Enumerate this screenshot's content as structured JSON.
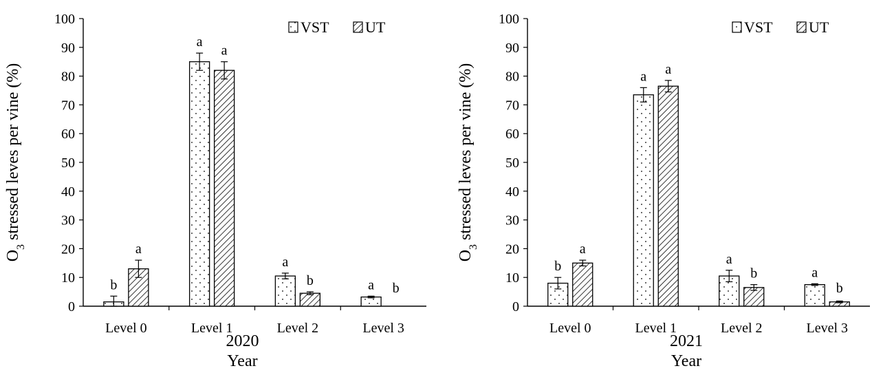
{
  "colors": {
    "ink": "#000000",
    "bg": "#ffffff"
  },
  "chart_data": [
    {
      "type": "bar",
      "subtitle": "2020",
      "xlabel": "Year",
      "ylabel_prefix": "O",
      "ylabel_sub": "3",
      "ylabel_rest": " stressed leves per vine (%)",
      "ylim": [
        0,
        100
      ],
      "yticks": [
        "0",
        "10",
        "20",
        "30",
        "40",
        "50",
        "60",
        "70",
        "80",
        "90",
        "100"
      ],
      "categories": [
        "Level 0",
        "Level 1",
        "Level 2",
        "Level 3"
      ],
      "legend_position": "top-right",
      "series": [
        {
          "name": "VST",
          "pattern": "dots",
          "values": [
            1.5,
            85,
            10.5,
            3.2
          ],
          "errors": [
            2.0,
            3.0,
            1.0,
            0.3
          ],
          "letters": [
            "b",
            "a",
            "a",
            "a"
          ]
        },
        {
          "name": "UT",
          "pattern": "hatch",
          "values": [
            13,
            82,
            4.5,
            0
          ],
          "errors": [
            3.0,
            3.0,
            0.5,
            0
          ],
          "letters": [
            "a",
            "a",
            "b",
            "b"
          ]
        }
      ]
    },
    {
      "type": "bar",
      "subtitle": "2021",
      "xlabel": "Year",
      "ylabel_prefix": "O",
      "ylabel_sub": "3",
      "ylabel_rest": " stressed leves per vine (%)",
      "ylim": [
        0,
        100
      ],
      "yticks": [
        "0",
        "10",
        "20",
        "30",
        "40",
        "50",
        "60",
        "70",
        "80",
        "90",
        "100"
      ],
      "categories": [
        "Level 0",
        "Level 1",
        "Level 2",
        "Level 3"
      ],
      "legend_position": "top-right",
      "series": [
        {
          "name": "VST",
          "pattern": "dots",
          "values": [
            8,
            73.5,
            10.5,
            7.5
          ],
          "errors": [
            2.0,
            2.5,
            2.0,
            0.3
          ],
          "letters": [
            "b",
            "a",
            "a",
            "a"
          ]
        },
        {
          "name": "UT",
          "pattern": "hatch",
          "values": [
            15,
            76.5,
            6.5,
            1.5
          ],
          "errors": [
            1.0,
            2.0,
            1.0,
            0.3
          ],
          "letters": [
            "a",
            "a",
            "b",
            "b"
          ]
        }
      ]
    }
  ]
}
